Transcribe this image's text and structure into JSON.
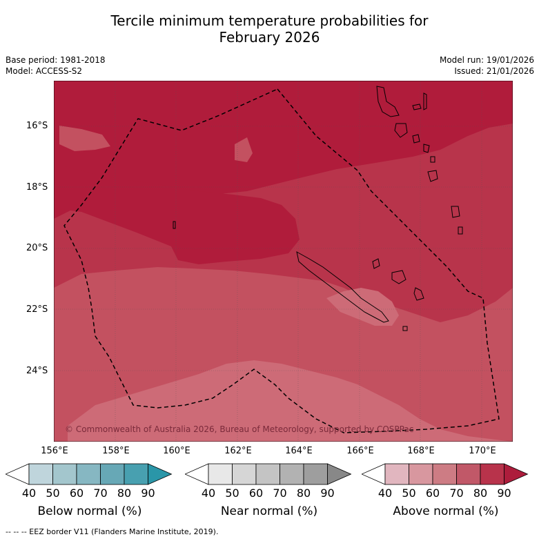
{
  "title_line1": "Tercile minimum temperature probabilities for",
  "title_line2": "February 2026",
  "base_period": "Base period: 1981-2018",
  "model": "Model: ACCESS-S2",
  "model_run": "Model run: 19/01/2026",
  "issued": "Issued: 21/01/2026",
  "lat_labels": [
    "16°S",
    "18°S",
    "20°S",
    "22°S",
    "24°S"
  ],
  "lon_labels": [
    "156°E",
    "158°E",
    "160°E",
    "162°E",
    "164°E",
    "166°E",
    "168°E",
    "170°E"
  ],
  "copyright": "© Commonwealth of Australia 2026, Bureau of Meteorology, supported by COSPPac",
  "colorbars": [
    {
      "label": "Below normal (%)",
      "ticks": [
        "40",
        "50",
        "60",
        "70",
        "80",
        "90"
      ],
      "colors": [
        "#ffffff",
        "#bfd5dc",
        "#a3c6cd",
        "#86b7c2",
        "#67a8b6",
        "#48a0b0",
        "#2a96a8"
      ]
    },
    {
      "label": "Near normal (%)",
      "ticks": [
        "40",
        "50",
        "60",
        "70",
        "80",
        "90"
      ],
      "colors": [
        "#ffffff",
        "#e8e8e8",
        "#d6d6d6",
        "#c4c4c4",
        "#b2b2b2",
        "#9e9e9e",
        "#888888"
      ]
    },
    {
      "label": "Above normal (%)",
      "ticks": [
        "40",
        "50",
        "60",
        "70",
        "80",
        "90"
      ],
      "colors": [
        "#ffffff",
        "#e1b6bf",
        "#d8979f",
        "#cd7c84",
        "#c15868",
        "#b8334b",
        "#ad1d3c"
      ]
    }
  ],
  "footnote": "-- -- -- EEZ border V11 (Flanders Marine Institute, 2019).",
  "map_colors": {
    "p90": "#b01c3b",
    "p80": "#b8344b",
    "p70": "#c35160",
    "p60": "#cd6b77"
  }
}
